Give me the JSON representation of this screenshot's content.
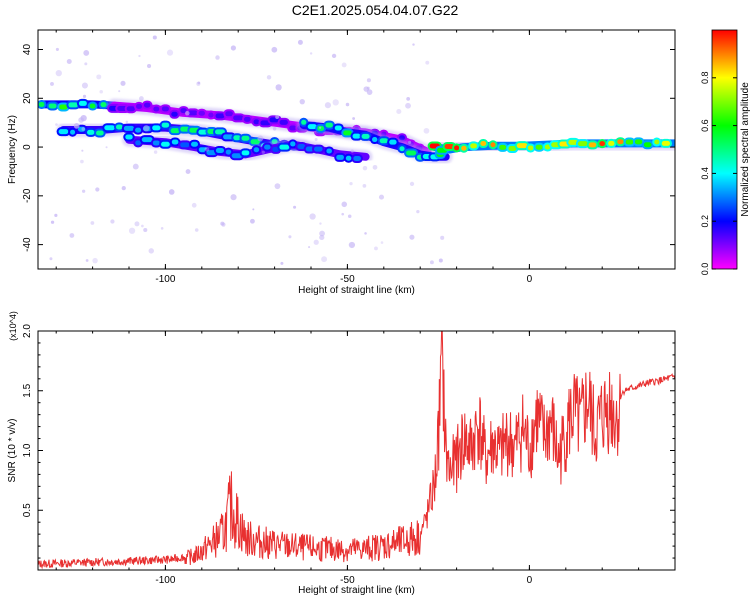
{
  "title": "C2E1.2025.054.04.07.G22",
  "colors": {
    "snr_line": "#e83030",
    "axis": "#000000",
    "ridge_bg": "#b9a6f2"
  },
  "chart_data": [
    {
      "type": "heatmap",
      "xlabel": "Height of straight line (km)",
      "ylabel": "Frequency (Hz)",
      "xlim": [
        -135,
        40
      ],
      "ylim": [
        -50,
        48
      ],
      "xticks": [
        -100,
        -50,
        0
      ],
      "yticks": [
        -40,
        -20,
        0,
        20,
        40
      ],
      "colorbar": {
        "label": "Normalized spectral amplitude",
        "range": [
          0,
          1
        ],
        "ticks": [
          "0.0",
          "0.2",
          "0.4",
          "0.6",
          "0.8"
        ],
        "colormap": [
          "#ff00ff",
          "#0000ff",
          "#00ffff",
          "#00ff00",
          "#ffff00",
          "#ff0000"
        ]
      },
      "ridges": [
        {
          "points": [
            [
              -134,
              17.5
            ],
            [
              -128,
              17.5
            ],
            [
              -120,
              17.5
            ],
            [
              -114,
              17
            ]
          ],
          "amplitude": 0.55
        },
        {
          "points": [
            [
              -114,
              17
            ],
            [
              -105,
              16
            ],
            [
              -95,
              14
            ],
            [
              -85,
              13
            ],
            [
              -75,
              11
            ],
            [
              -65,
              9
            ],
            [
              -55,
              7
            ],
            [
              -45,
              6
            ],
            [
              -35,
              3
            ],
            [
              -28,
              -2
            ]
          ],
          "amplitude": 0.15
        },
        {
          "points": [
            [
              -128,
              7
            ],
            [
              -118,
              7
            ],
            [
              -110,
              8
            ],
            [
              -100,
              8
            ],
            [
              -92,
              7
            ],
            [
              -85,
              5
            ],
            [
              -78,
              3
            ],
            [
              -70,
              1
            ],
            [
              -62,
              0
            ]
          ],
          "amplitude": 0.45
        },
        {
          "points": [
            [
              -62,
              9
            ],
            [
              -55,
              8
            ],
            [
              -50,
              6
            ],
            [
              -45,
              5
            ],
            [
              -40,
              2
            ],
            [
              -35,
              0
            ],
            [
              -30,
              -3
            ],
            [
              -26,
              -4
            ],
            [
              -23,
              -4
            ]
          ],
          "amplitude": 0.5
        },
        {
          "points": [
            [
              -110,
              3
            ],
            [
              -100,
              2
            ],
            [
              -92,
              0
            ],
            [
              -85,
              -2
            ],
            [
              -78,
              -3
            ],
            [
              -72,
              -1
            ],
            [
              -65,
              1
            ],
            [
              -58,
              -1
            ],
            [
              -52,
              -3
            ],
            [
              -45,
              -4
            ]
          ],
          "amplitude": 0.35
        },
        {
          "points": [
            [
              -26,
              0
            ],
            [
              -22,
              -1
            ],
            [
              -18,
              0
            ],
            [
              -10,
              0.5
            ],
            [
              -2,
              0.5
            ],
            [
              5,
              1
            ],
            [
              12,
              1.5
            ],
            [
              20,
              1.5
            ],
            [
              30,
              1.5
            ],
            [
              40,
              1.5
            ]
          ],
          "amplitude": 0.85
        }
      ]
    },
    {
      "type": "line",
      "xlabel": "Height of straight line (km)",
      "ylabel": "SNR (10 * v/v)",
      "y_multiplier": "(x10^4)",
      "xlim": [
        -135,
        40
      ],
      "ylim": [
        0,
        20000
      ],
      "xticks": [
        -100,
        -50,
        0
      ],
      "yticks": [
        5000,
        10000,
        15000,
        20000
      ],
      "ytick_labels": [
        "0.5",
        "1.0",
        "1.5",
        "2.0"
      ],
      "series": [
        {
          "x": [
            -135,
            -125,
            -115,
            -105,
            -98,
            -92,
            -88,
            -84,
            -82,
            -78,
            -72,
            -65,
            -58,
            -50,
            -45,
            -40,
            -35,
            -30,
            -28,
            -26,
            -25,
            -24,
            -23,
            -22,
            -20,
            -18,
            -16,
            -14,
            -12,
            -10,
            -8,
            -6,
            -4,
            -2,
            0,
            2,
            4,
            6,
            8,
            10,
            12,
            14,
            16,
            18,
            20,
            22,
            24,
            26,
            28,
            30,
            32,
            35,
            38,
            40
          ],
          "y": [
            500,
            600,
            700,
            800,
            900,
            1300,
            2300,
            3500,
            6000,
            3000,
            2500,
            2200,
            2000,
            1900,
            2000,
            2300,
            2600,
            3200,
            5000,
            8000,
            12000,
            20000,
            11000,
            9000,
            10000,
            12000,
            11000,
            13500,
            10000,
            11500,
            10500,
            12000,
            11000,
            13000,
            11000,
            14000,
            12000,
            13500,
            10000,
            12500,
            14500,
            13000,
            15500,
            12500,
            14000,
            15000,
            14000,
            15000,
            15200,
            15400,
            15600,
            15800,
            16000,
            16200
          ]
        }
      ]
    }
  ]
}
